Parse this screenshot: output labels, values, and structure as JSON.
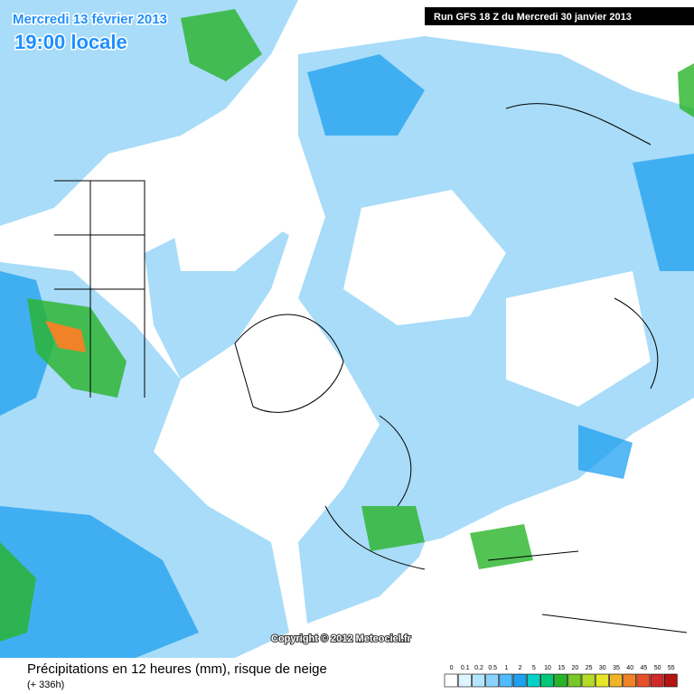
{
  "header": {
    "date": "Mercredi 13 février 2013",
    "time": "19:00 locale",
    "run": "Run GFS 18 Z du Mercredi 30 janvier 2013"
  },
  "copyright": "Copyright © 2012 Meteociel.fr",
  "footer": {
    "title": "Précipitations en 12 heures (mm), risque de neige",
    "subtitle": "(+ 336h)"
  },
  "legend": {
    "labels": [
      0,
      0.1,
      0.2,
      0.5,
      1,
      2,
      5,
      10,
      15,
      20,
      25,
      30,
      35,
      40,
      45,
      50,
      55
    ],
    "colors": [
      "#ffffff",
      "#e0f4ff",
      "#b4e6ff",
      "#8cd2ff",
      "#50bcff",
      "#1ea0f0",
      "#00d2c8",
      "#00c878",
      "#28b428",
      "#78c828",
      "#b4dc28",
      "#e6e628",
      "#f0b428",
      "#f08228",
      "#e65028",
      "#d22828",
      "#b41414"
    ]
  }
}
